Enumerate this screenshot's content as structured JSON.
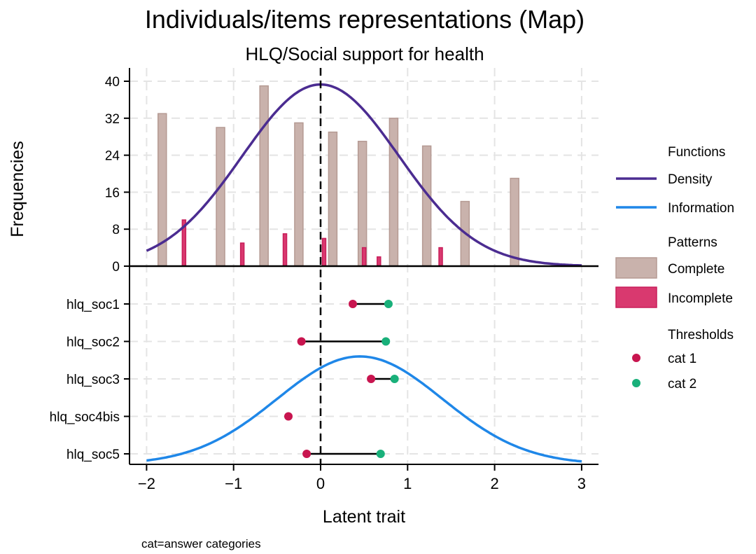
{
  "chart_data": {
    "type": "bar",
    "title": "Individuals/items representations (Map)",
    "subtitle": "HLQ/Social support for health",
    "xlabel": "Latent trait",
    "ylabel": "Frequencies",
    "note": "cat=answer categories",
    "xlim": [
      -2.2,
      3.2
    ],
    "xticks": [
      -2,
      -1,
      0,
      1,
      2,
      3
    ],
    "xtick_labels": [
      "−2",
      "−1",
      "0",
      "1",
      "2",
      "3"
    ],
    "ylim": [
      0,
      40
    ],
    "yticks": [
      0,
      8,
      16,
      24,
      32,
      40
    ],
    "grid": true,
    "reference_line_x": 0,
    "colors": {
      "complete_fill": "#c9b2ac",
      "complete_stroke": "#b59a93",
      "incomplete_fill": "#d9396f",
      "incomplete_stroke": "#c81e5a",
      "density": "#4b2c91",
      "information": "#1f87e8",
      "cat1": "#c8154f",
      "cat2": "#19b07a"
    },
    "series": [
      {
        "name": "Complete",
        "x": [
          -1.82,
          -1.15,
          -0.65,
          -0.25,
          0.14,
          0.48,
          0.84,
          1.22,
          1.66,
          2.23
        ],
        "values": [
          33,
          30,
          39,
          31,
          29,
          27,
          32,
          26,
          14,
          19
        ]
      },
      {
        "name": "Incomplete",
        "x": [
          -1.57,
          -0.9,
          -0.41,
          0.04,
          0.5,
          0.67,
          1.38
        ],
        "values": [
          10,
          5,
          7,
          6,
          4,
          2,
          4
        ]
      }
    ],
    "functions": [
      {
        "name": "Density",
        "kind": "normal",
        "mean": 0.0,
        "sd": 0.9,
        "peak": 39.3,
        "x_range": [
          -2,
          3
        ]
      },
      {
        "name": "Information",
        "kind": "normal",
        "mean": 0.45,
        "sd": 0.95,
        "peak_item_position": 1.4,
        "x_range": [
          -2,
          3
        ]
      }
    ],
    "items": [
      "hlq_soc1",
      "hlq_soc2",
      "hlq_soc3",
      "hlq_soc4bis",
      "hlq_soc5"
    ],
    "thresholds": [
      {
        "item": "hlq_soc1",
        "cat1": 0.37,
        "cat2": 0.78
      },
      {
        "item": "hlq_soc2",
        "cat1": -0.22,
        "cat2": 0.75
      },
      {
        "item": "hlq_soc3",
        "cat1": 0.58,
        "cat2": 0.85
      },
      {
        "item": "hlq_soc4bis",
        "cat1": -0.37,
        "cat2": null
      },
      {
        "item": "hlq_soc5",
        "cat1": -0.16,
        "cat2": 0.69
      }
    ],
    "legend": {
      "position": "right",
      "sections": [
        {
          "title": "Functions",
          "entries": [
            {
              "label": "Density",
              "kind": "line",
              "color_key": "density"
            },
            {
              "label": "Information",
              "kind": "line",
              "color_key": "information"
            }
          ]
        },
        {
          "title": "Patterns",
          "entries": [
            {
              "label": "Complete",
              "kind": "box",
              "color_key": "complete"
            },
            {
              "label": "Incomplete",
              "kind": "box",
              "color_key": "incomplete"
            }
          ]
        },
        {
          "title": "Thresholds",
          "entries": [
            {
              "label": "cat 1",
              "kind": "dot",
              "color_key": "cat1"
            },
            {
              "label": "cat 2",
              "kind": "dot",
              "color_key": "cat2"
            }
          ]
        }
      ]
    }
  }
}
